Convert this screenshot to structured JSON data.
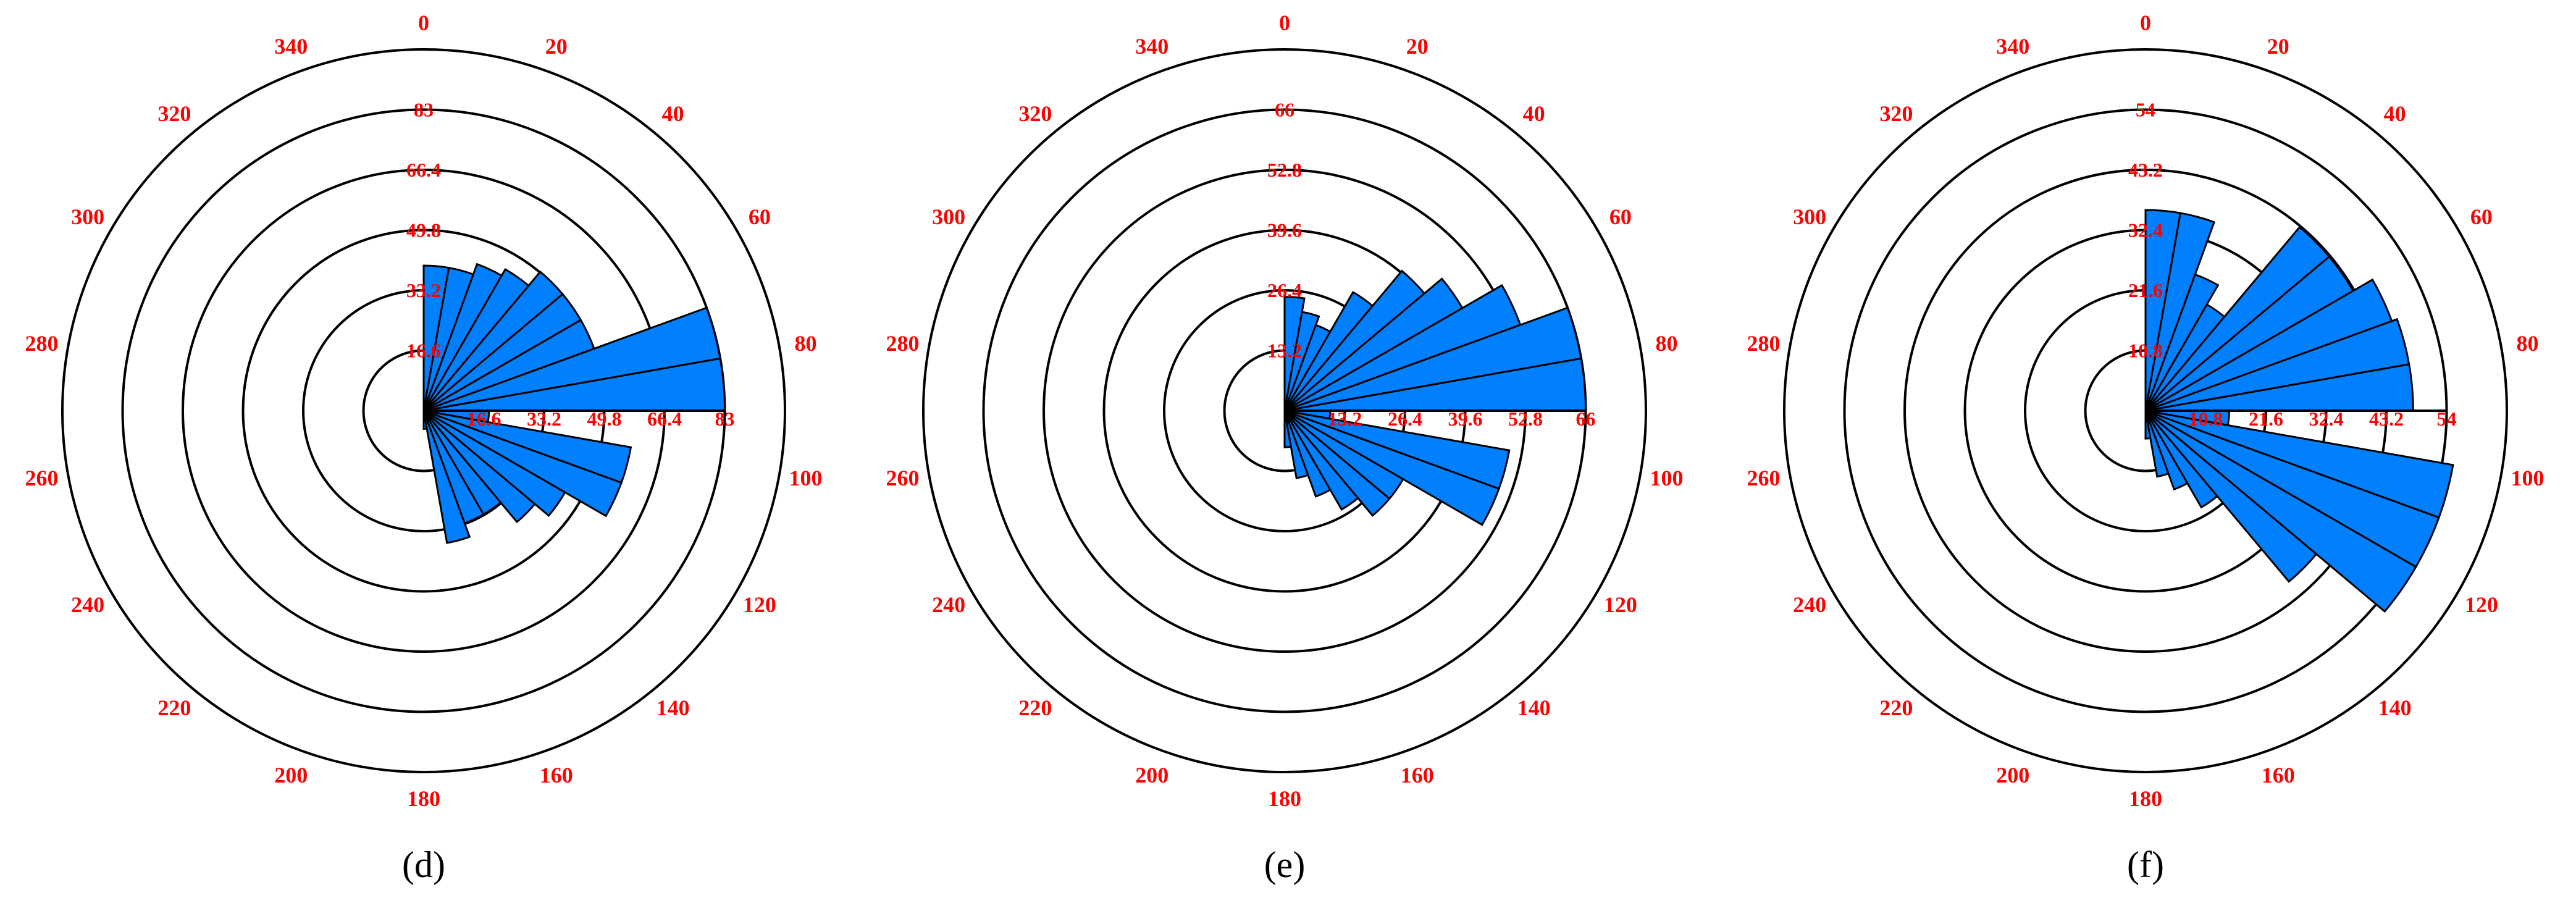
{
  "chart_data": [
    {
      "type": "polar-bar",
      "caption": "(d)",
      "color": "#0080ff",
      "x": [
        5,
        15,
        25,
        35,
        45,
        55,
        65,
        75,
        85,
        95,
        105,
        115,
        125,
        135,
        145,
        155,
        165,
        175
      ],
      "values": [
        40,
        40,
        43,
        45,
        50,
        50,
        50,
        83,
        83,
        18,
        58,
        58,
        45,
        40,
        33,
        33,
        37,
        5
      ],
      "xlim": [
        0,
        360
      ],
      "xticks": [
        0,
        20,
        40,
        60,
        80,
        100,
        120,
        140,
        160,
        180,
        200,
        220,
        240,
        260,
        280,
        300,
        320,
        340
      ],
      "ylim": [
        0,
        99.6
      ],
      "yticks": [
        16.6,
        33.2,
        49.8,
        66.4,
        83
      ]
    },
    {
      "type": "polar-bar",
      "caption": "(e)",
      "color": "#0080ff",
      "x": [
        5,
        15,
        25,
        35,
        45,
        55,
        65,
        75,
        85,
        95,
        105,
        115,
        125,
        135,
        145,
        155,
        165,
        175
      ],
      "values": [
        25,
        22,
        20,
        30,
        40,
        45,
        55,
        66,
        66,
        10,
        50,
        50,
        30,
        30,
        25,
        20,
        15,
        8
      ],
      "xlim": [
        0,
        360
      ],
      "xticks": [
        0,
        20,
        40,
        60,
        80,
        100,
        120,
        140,
        160,
        180,
        200,
        220,
        240,
        260,
        280,
        300,
        320,
        340
      ],
      "ylim": [
        0,
        79.2
      ],
      "yticks": [
        13.2,
        26.4,
        39.6,
        52.8,
        66
      ]
    },
    {
      "type": "polar-bar",
      "caption": "(f)",
      "color": "#0080ff",
      "x": [
        5,
        15,
        25,
        35,
        45,
        55,
        65,
        75,
        85,
        95,
        105,
        115,
        125,
        135,
        145,
        155,
        165,
        175
      ],
      "values": [
        36,
        36,
        26,
        22,
        43,
        43,
        47,
        48,
        48,
        15,
        56,
        56,
        56,
        40,
        20,
        15,
        12,
        5
      ],
      "xlim": [
        0,
        360
      ],
      "xticks": [
        0,
        20,
        40,
        60,
        80,
        100,
        120,
        140,
        160,
        180,
        200,
        220,
        240,
        260,
        280,
        300,
        320,
        340
      ],
      "ylim": [
        0,
        64.8
      ],
      "yticks": [
        10.8,
        21.6,
        32.4,
        43.2,
        54
      ]
    }
  ]
}
